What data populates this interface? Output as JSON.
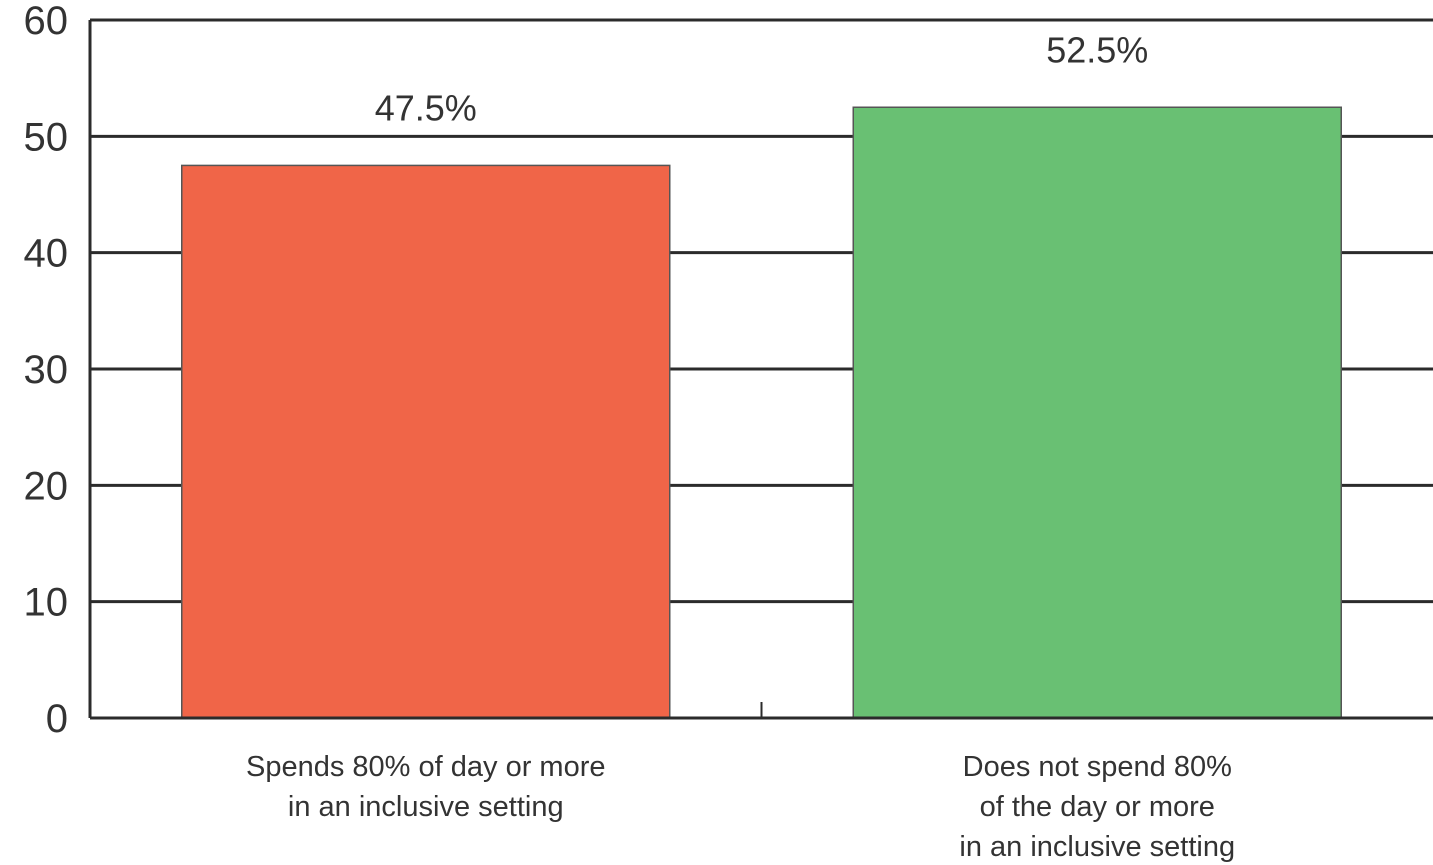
{
  "chart_data": {
    "type": "bar",
    "categories": [
      [
        "Spends 80% of day or more",
        "in an inclusive setting"
      ],
      [
        "Does not spend 80%",
        "of the day or more",
        "in an inclusive setting"
      ]
    ],
    "values": [
      47.5,
      52.5
    ],
    "data_labels": [
      "47.5%",
      "52.5%"
    ],
    "bar_colors": [
      "#f06548",
      "#69c073"
    ],
    "ylim": [
      0,
      60
    ],
    "yticks": [
      0,
      10,
      20,
      30,
      40,
      50,
      60
    ],
    "ytick_labels": [
      "0",
      "10",
      "20",
      "30",
      "40",
      "50",
      "60"
    ],
    "grid": true,
    "title": "",
    "xlabel": "",
    "ylabel": ""
  }
}
